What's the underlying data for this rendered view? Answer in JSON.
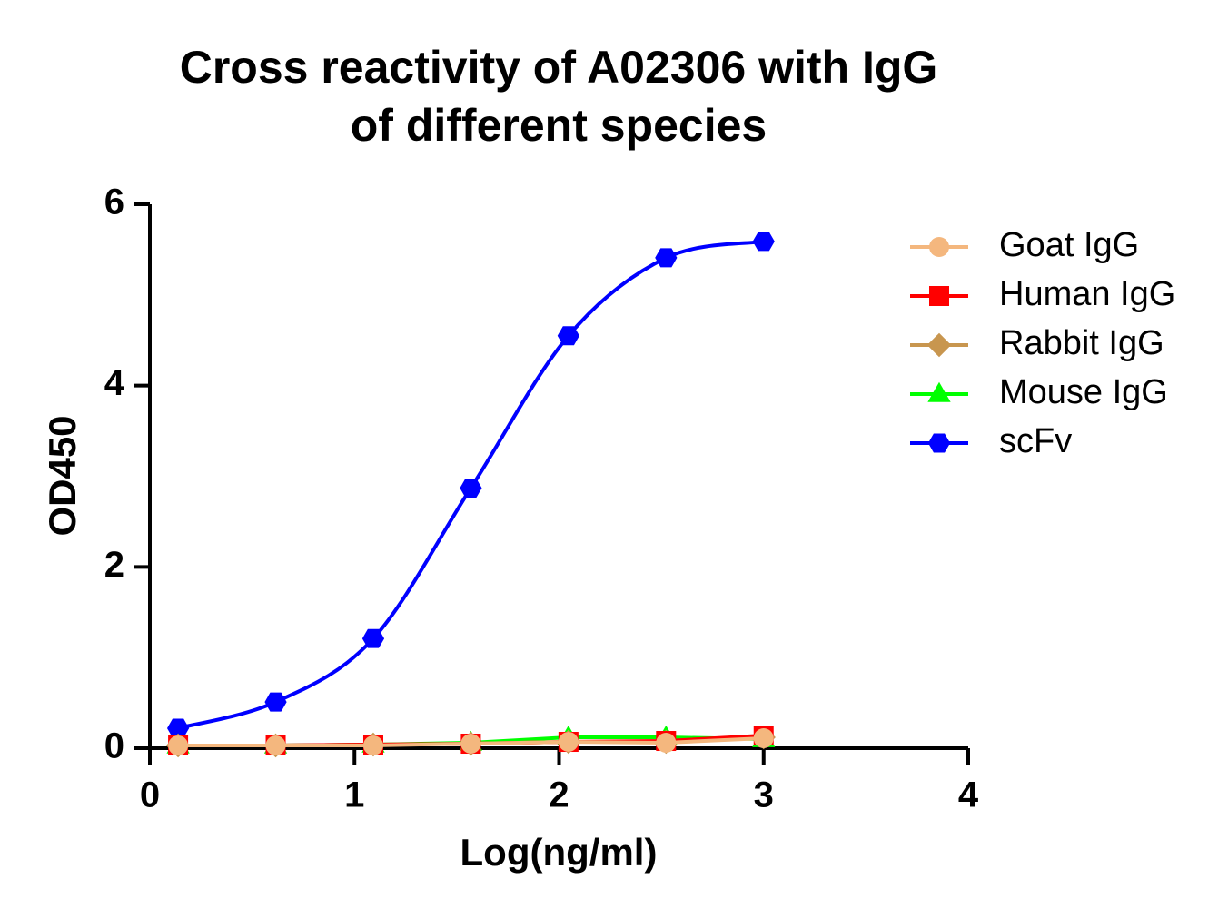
{
  "chart_data": {
    "type": "line",
    "title": [
      "Cross reactivity of A02306 with IgG",
      "of different species"
    ],
    "x_label": "Log(ng/ml)",
    "y_label": "OD450",
    "x": [
      0.138,
      0.615,
      1.092,
      1.569,
      2.046,
      2.523,
      3.0
    ],
    "series": [
      {
        "name": "Goat IgG",
        "color": "#f4b77e",
        "marker": "circle",
        "values": [
          0.03,
          0.03,
          0.03,
          0.05,
          0.07,
          0.06,
          0.11
        ]
      },
      {
        "name": "Human IgG",
        "color": "#ff0000",
        "marker": "square",
        "values": [
          0.03,
          0.03,
          0.04,
          0.05,
          0.07,
          0.08,
          0.14
        ]
      },
      {
        "name": "Rabbit IgG",
        "color": "#c8964f",
        "marker": "diamond",
        "values": [
          0.03,
          0.03,
          0.04,
          0.05,
          0.07,
          0.07,
          0.12
        ]
      },
      {
        "name": "Mouse IgG",
        "color": "#00ff00",
        "marker": "triangle",
        "values": [
          0.03,
          0.03,
          0.04,
          0.06,
          0.12,
          0.12,
          0.1
        ]
      },
      {
        "name": "scFv",
        "color": "#0000ff",
        "marker": "hexagon",
        "smooth": true,
        "values": [
          0.22,
          0.51,
          1.21,
          2.87,
          4.55,
          5.41,
          5.59
        ]
      }
    ],
    "xlim": [
      0,
      4
    ],
    "xticks": [
      0,
      1,
      2,
      3,
      4
    ],
    "ylim": [
      0,
      6
    ],
    "yticks": [
      0,
      2,
      4,
      6
    ]
  }
}
